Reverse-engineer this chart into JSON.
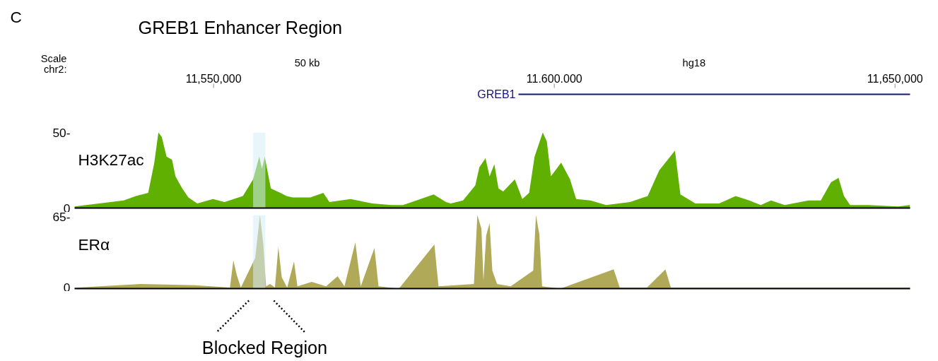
{
  "chart_data": [
    {
      "type": "area",
      "title": "GREB1 Enhancer Region",
      "annotations": [
        "C",
        "Scale",
        "chr2:",
        "50 kb",
        "hg18",
        "H3K27ac",
        "GREB1"
      ],
      "x": [
        11529600,
        11536800,
        11538600,
        11540400,
        11541300,
        11541900,
        11542400,
        11543100,
        11543900,
        11544400,
        11545400,
        11546300,
        11547600,
        11549900,
        11551600,
        11554300,
        11555800,
        11556700,
        11557100,
        11557500,
        11558400,
        11559800,
        11560700,
        11561600,
        11564200,
        11566100,
        11567000,
        11570100,
        11573300,
        11576100,
        11577800,
        11582300,
        11584100,
        11584800,
        11586600,
        11588400,
        11589000,
        11589900,
        11590500,
        11591200,
        11591800,
        11592500,
        11594200,
        11595300,
        11596300,
        11597100,
        11598300,
        11598900,
        11599500,
        11601000,
        11602300,
        11603200,
        11605300,
        11607600,
        11611100,
        11613700,
        11615400,
        11617700,
        11618500,
        11620700,
        11624200,
        11626600,
        11628600,
        11630300,
        11631800,
        11633800,
        11637300,
        11639100,
        11640600,
        11641700,
        11642500,
        11643400,
        11646100,
        11650400,
        11652200
      ],
      "series": [
        {
          "color": "#5fb000",
          "values": [
            1,
            5,
            8,
            10,
            30,
            50,
            47,
            34,
            32,
            21,
            13,
            7,
            3,
            6,
            4,
            8,
            19,
            34,
            26,
            34,
            13,
            10,
            8,
            7,
            7,
            10,
            4,
            6,
            3,
            2,
            2,
            9,
            4,
            3,
            5,
            15,
            27,
            33,
            21,
            29,
            13,
            11,
            19,
            6,
            10,
            34,
            50,
            44,
            21,
            30,
            19,
            6,
            5,
            2,
            4,
            8,
            25,
            38,
            9,
            3,
            3,
            8,
            5,
            2,
            5,
            2,
            5,
            5,
            17,
            20,
            8,
            2,
            2,
            1,
            2
          ]
        }
      ],
      "xlim": [
        11529600,
        11652200
      ],
      "xticks": [
        {
          "value": 11550000,
          "label": "11,550,000"
        },
        {
          "value": 11600000,
          "label": "11.600.000"
        },
        {
          "value": 11650000,
          "label": "11,650,000"
        }
      ],
      "ylim": [
        0,
        50
      ],
      "yticks": [
        0,
        {
          "value": 50,
          "label": "50-"
        }
      ],
      "bands": [
        {
          "axis": "x",
          "from": 11555800,
          "to": 11557600,
          "color": "#d6ecf8"
        }
      ],
      "grid": false
    },
    {
      "type": "area",
      "annotations": [
        "ERα",
        "Blocked Region"
      ],
      "x": [
        11529600,
        11530100,
        11539300,
        11547300,
        11552400,
        11552900,
        11553400,
        11554000,
        11556100,
        11556800,
        11557300,
        11557700,
        11558300,
        11559000,
        11559500,
        11560000,
        11560800,
        11561800,
        11562300,
        11564400,
        11566500,
        11568200,
        11569200,
        11570800,
        11571600,
        11573600,
        11574200,
        11577200,
        11582400,
        11583000,
        11588200,
        11588700,
        11589300,
        11589600,
        11590000,
        11590500,
        11590900,
        11591600,
        11593600,
        11596900,
        11597300,
        11597800,
        11598200,
        11600900,
        11608700,
        11609600,
        11613600,
        11616300,
        11617100,
        11620900,
        11627300,
        11636500,
        11645600,
        11651000,
        11652200
      ],
      "series": [
        {
          "color": "#b0aa58",
          "values": [
            1,
            1,
            4,
            3,
            1,
            25,
            12,
            1,
            27,
            65,
            39,
            2,
            4,
            1,
            37,
            10,
            1,
            24,
            2,
            6,
            2,
            11,
            2,
            41,
            2,
            36,
            2,
            0,
            39,
            2,
            4,
            65,
            53,
            7,
            47,
            58,
            16,
            4,
            2,
            16,
            65,
            48,
            2,
            0,
            17,
            1,
            1,
            17,
            1,
            1,
            1,
            1,
            1,
            1,
            1
          ]
        }
      ],
      "xlim": [
        11529600,
        11652200
      ],
      "ylim": [
        0,
        65
      ],
      "yticks": [
        0,
        {
          "value": 65,
          "label": "65-"
        }
      ],
      "tick_labels": "y",
      "bands": [
        {
          "axis": "x",
          "from": 11555800,
          "to": 11557600,
          "color": "#d6ecf8"
        }
      ],
      "grid": false
    }
  ]
}
